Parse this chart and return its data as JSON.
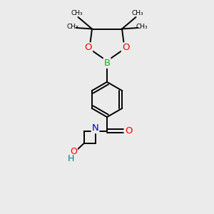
{
  "bg_color": "#ebebeb",
  "bond_color": "#000000",
  "O_color": "#ff0000",
  "B_color": "#00bb00",
  "N_color": "#0000cc",
  "OH_color": "#008080",
  "figsize": [
    3.0,
    3.0
  ],
  "dpi": 100,
  "xlim": [
    0,
    10
  ],
  "ylim": [
    0,
    10
  ]
}
